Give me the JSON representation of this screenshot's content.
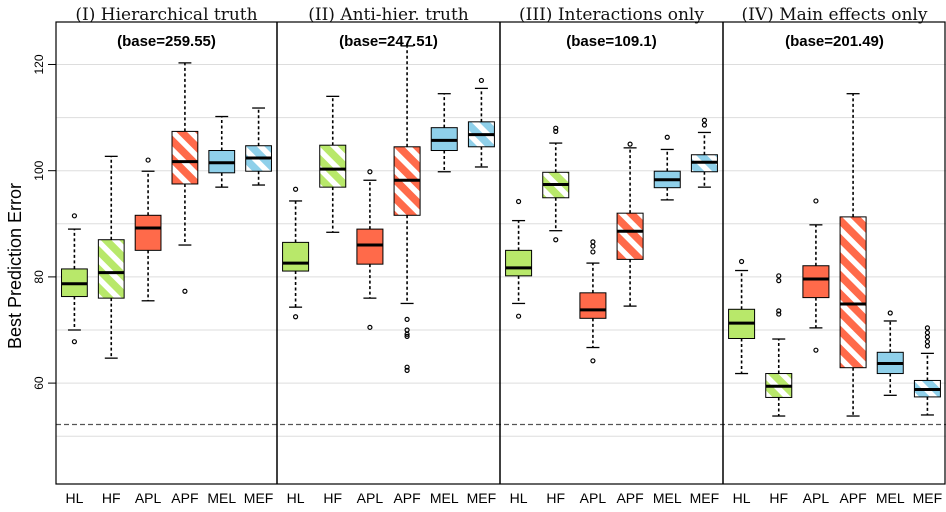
{
  "chart_data": {
    "type": "boxplot",
    "ylabel": "Best Prediction Error",
    "ylim": [
      41,
      128
    ],
    "yticks": [
      60,
      80,
      100,
      120
    ],
    "grid": true,
    "reference_line": 52.2,
    "categories": [
      "HL",
      "HF",
      "APL",
      "APF",
      "MEL",
      "MEF"
    ],
    "category_styles": [
      {
        "fill": "#b8e86a",
        "hatched": false
      },
      {
        "fill": "#b8e86a",
        "hatched": true
      },
      {
        "fill": "#ff6a4a",
        "hatched": false
      },
      {
        "fill": "#ff6a4a",
        "hatched": true
      },
      {
        "fill": "#8fd0ea",
        "hatched": false
      },
      {
        "fill": "#8fd0ea",
        "hatched": true
      }
    ],
    "panels": [
      {
        "title": "(I) Hierarchical truth",
        "base": "(base=259.55)",
        "boxes": [
          {
            "whisker_low": 70,
            "q1": 76.3,
            "median": 78.7,
            "q3": 81.5,
            "whisker_high": 89,
            "outliers": [
              67.8,
              91.5
            ]
          },
          {
            "whisker_low": 64.7,
            "q1": 76,
            "median": 80.8,
            "q3": 87,
            "whisker_high": 102.7,
            "outliers": []
          },
          {
            "whisker_low": 75.5,
            "q1": 85,
            "median": 89.2,
            "q3": 91.6,
            "whisker_high": 99.9,
            "outliers": [
              102
            ]
          },
          {
            "whisker_low": 86,
            "q1": 97.5,
            "median": 101.7,
            "q3": 107.4,
            "whisker_high": 120.3,
            "outliers": [
              77.3
            ]
          },
          {
            "whisker_low": 96.9,
            "q1": 99.6,
            "median": 101.5,
            "q3": 103.8,
            "whisker_high": 110.2,
            "outliers": []
          },
          {
            "whisker_low": 97.3,
            "q1": 99.9,
            "median": 102.4,
            "q3": 104.7,
            "whisker_high": 111.8,
            "outliers": []
          }
        ]
      },
      {
        "title": "(II) Anti-hier. truth",
        "base": "(base=247.51)",
        "boxes": [
          {
            "whisker_low": 74.3,
            "q1": 81.1,
            "median": 82.6,
            "q3": 86.5,
            "whisker_high": 94.3,
            "outliers": [
              72.5,
              96.5
            ]
          },
          {
            "whisker_low": 88.4,
            "q1": 96.9,
            "median": 100.3,
            "q3": 104.8,
            "whisker_high": 114,
            "outliers": []
          },
          {
            "whisker_low": 76,
            "q1": 82.4,
            "median": 86,
            "q3": 89,
            "whisker_high": 98.2,
            "outliers": [
              70.5,
              99.8
            ]
          },
          {
            "whisker_low": 75,
            "q1": 91.6,
            "median": 98.2,
            "q3": 104.5,
            "whisker_high": 123.5,
            "outliers": [
              72,
              70,
              69.2,
              68.8,
              63,
              62.4
            ]
          },
          {
            "whisker_low": 99.8,
            "q1": 103.8,
            "median": 105.7,
            "q3": 108.1,
            "whisker_high": 114.5,
            "outliers": []
          },
          {
            "whisker_low": 100.7,
            "q1": 104.5,
            "median": 106.8,
            "q3": 109.2,
            "whisker_high": 115.5,
            "outliers": [
              117
            ]
          }
        ]
      },
      {
        "title": "(III) Interactions only",
        "base": "(base=109.1)",
        "boxes": [
          {
            "whisker_low": 75,
            "q1": 80.2,
            "median": 81.7,
            "q3": 85,
            "whisker_high": 90.6,
            "outliers": [
              72.6,
              94.2
            ]
          },
          {
            "whisker_low": 88.7,
            "q1": 94.9,
            "median": 97.4,
            "q3": 99.7,
            "whisker_high": 105.2,
            "outliers": [
              87,
              107.4,
              108
            ]
          },
          {
            "whisker_low": 66.7,
            "q1": 72.2,
            "median": 73.8,
            "q3": 77,
            "whisker_high": 82.6,
            "outliers": [
              64.2,
              84.7,
              85.8,
              86.6
            ]
          },
          {
            "whisker_low": 74.5,
            "q1": 83.3,
            "median": 88.6,
            "q3": 92,
            "whisker_high": 104.3,
            "outliers": [
              105
            ]
          },
          {
            "whisker_low": 94.5,
            "q1": 96.8,
            "median": 98.3,
            "q3": 99.9,
            "whisker_high": 104,
            "outliers": [
              106.3
            ]
          },
          {
            "whisker_low": 96.9,
            "q1": 99.8,
            "median": 101.6,
            "q3": 103,
            "whisker_high": 107.2,
            "outliers": [
              108.6,
              109.5
            ]
          }
        ]
      },
      {
        "title": "(IV) Main effects only",
        "base": "(base=201.49)",
        "boxes": [
          {
            "whisker_low": 61.8,
            "q1": 68.4,
            "median": 71.3,
            "q3": 73.9,
            "whisker_high": 81.2,
            "outliers": [
              82.9
            ]
          },
          {
            "whisker_low": 53.8,
            "q1": 57.3,
            "median": 59.4,
            "q3": 61.8,
            "whisker_high": 68.3,
            "outliers": [
              73,
              73.6,
              79.3,
              80.2
            ]
          },
          {
            "whisker_low": 70.4,
            "q1": 76.1,
            "median": 79.6,
            "q3": 82.1,
            "whisker_high": 89.8,
            "outliers": [
              66.2,
              94.3
            ]
          },
          {
            "whisker_low": 53.8,
            "q1": 62.9,
            "median": 74.9,
            "q3": 91.3,
            "whisker_high": 114.5,
            "outliers": []
          },
          {
            "whisker_low": 57.7,
            "q1": 61.8,
            "median": 63.7,
            "q3": 65.8,
            "whisker_high": 71.7,
            "outliers": [
              73.2
            ]
          },
          {
            "whisker_low": 54,
            "q1": 57.4,
            "median": 58.8,
            "q3": 60.5,
            "whisker_high": 65.6,
            "outliers": [
              67,
              67.8,
              68.7,
              69.5,
              70.4
            ]
          }
        ]
      }
    ]
  }
}
